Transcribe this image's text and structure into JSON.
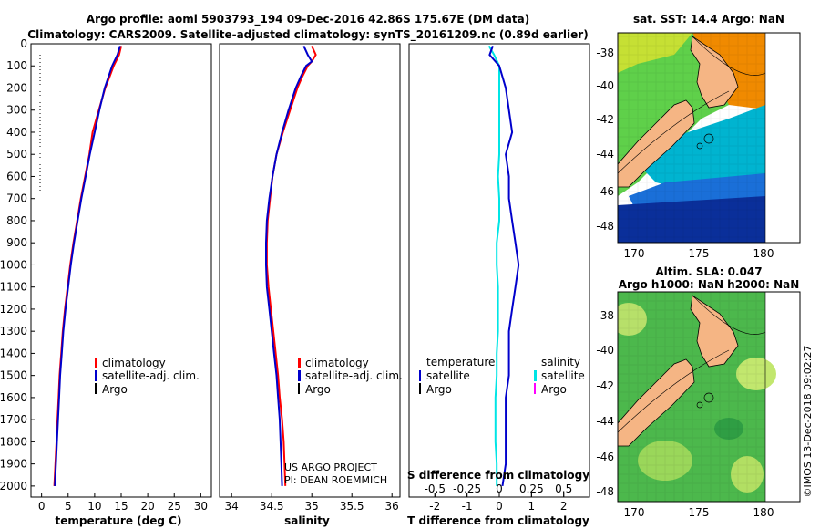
{
  "header": {
    "line1": "Argo profile: aoml 5903793_194 09-Dec-2016 42.86S 175.67E (DM data)",
    "line2": "Climatology: CARS2009. Satellite-adjusted climatology: synTS_20161209.nc (0.89d earlier)"
  },
  "colors": {
    "climatology": "#ff0000",
    "satellite": "#0000cc",
    "argo": "#000000",
    "satellite_sal": "#00e5e5",
    "argo_sal": "#ff00ff",
    "land": "#f5b584"
  },
  "chart_data": [
    {
      "type": "line",
      "id": "temperature",
      "xlabel": "temperature (deg C)",
      "ylabel": "",
      "xlim": [
        -2,
        32
      ],
      "ylim": [
        0,
        2050
      ],
      "y_inverted": true,
      "xticks": [
        0,
        5,
        10,
        15,
        20,
        25,
        30
      ],
      "yticks": [
        0,
        100,
        200,
        300,
        400,
        500,
        600,
        700,
        800,
        900,
        1000,
        1100,
        1200,
        1300,
        1400,
        1500,
        1600,
        1700,
        1800,
        1900,
        2000
      ],
      "depth": [
        10,
        50,
        100,
        150,
        200,
        300,
        400,
        500,
        600,
        700,
        800,
        900,
        1000,
        1100,
        1200,
        1300,
        1400,
        1500,
        1600,
        1700,
        1800,
        1900,
        2000
      ],
      "series": [
        {
          "name": "climatology",
          "values": [
            15.0,
            14.6,
            13.6,
            12.8,
            12.0,
            10.8,
            9.6,
            9.0,
            8.2,
            7.4,
            6.7,
            6.0,
            5.4,
            4.9,
            4.4,
            4.0,
            3.7,
            3.4,
            3.2,
            3.0,
            2.8,
            2.6,
            2.4
          ]
        },
        {
          "name": "satellite-adj. clim.",
          "values": [
            14.8,
            14.3,
            13.3,
            12.6,
            11.9,
            10.9,
            10.0,
            9.1,
            8.3,
            7.5,
            6.8,
            6.1,
            5.5,
            5.0,
            4.5,
            4.1,
            3.8,
            3.5,
            3.3,
            3.1,
            2.9,
            2.7,
            2.5
          ]
        },
        {
          "name": "Argo",
          "values": []
        }
      ],
      "legend": [
        "climatology",
        "satellite-adj. clim.",
        "Argo"
      ]
    },
    {
      "type": "line",
      "id": "salinity",
      "xlabel": "salinity",
      "ylabel": "",
      "xlim": [
        33.85,
        36.1
      ],
      "ylim": [
        0,
        2050
      ],
      "y_inverted": true,
      "xticks": [
        34,
        34.5,
        35,
        35.5,
        36
      ],
      "xticklabels": [
        "34",
        "34.5",
        "35",
        "35.5",
        "36"
      ],
      "depth": [
        10,
        50,
        80,
        100,
        150,
        200,
        300,
        400,
        500,
        600,
        700,
        800,
        900,
        1000,
        1100,
        1200,
        1300,
        1400,
        1500,
        1600,
        1700,
        1800,
        1900,
        2000
      ],
      "series": [
        {
          "name": "climatology",
          "values": [
            35.0,
            35.05,
            35.0,
            34.95,
            34.88,
            34.82,
            34.73,
            34.64,
            34.56,
            34.51,
            34.48,
            34.45,
            34.44,
            34.44,
            34.46,
            34.49,
            34.52,
            34.55,
            34.58,
            34.6,
            34.63,
            34.65,
            34.66,
            34.67
          ]
        },
        {
          "name": "satellite-adj. clim.",
          "values": [
            34.9,
            34.95,
            35.0,
            34.93,
            34.86,
            34.8,
            34.71,
            34.63,
            34.56,
            34.51,
            34.47,
            34.44,
            34.43,
            34.43,
            34.44,
            34.47,
            34.5,
            34.53,
            34.56,
            34.58,
            34.6,
            34.61,
            34.62,
            34.63
          ]
        },
        {
          "name": "Argo",
          "values": []
        }
      ],
      "legend": [
        "climatology",
        "satellite-adj. clim.",
        "Argo"
      ],
      "annotation": [
        "US ARGO PROJECT",
        "PI: DEAN ROEMMICH"
      ]
    },
    {
      "type": "line",
      "id": "difference",
      "xlabel": "T difference from climatology",
      "xlabel_top": "S difference from climatology",
      "xlim": [
        -2.8,
        2.8
      ],
      "ylim": [
        0,
        2050
      ],
      "y_inverted": true,
      "xticks": [
        -2,
        -1,
        0,
        1,
        2
      ],
      "xticks_top": [
        -0.5,
        -0.25,
        0,
        0.25,
        0.5
      ],
      "xticks_top_labels": [
        "-0.5",
        "-0.25",
        "0",
        "0.25",
        "0.5"
      ],
      "depth": [
        10,
        50,
        100,
        200,
        300,
        400,
        500,
        600,
        700,
        800,
        900,
        1000,
        1100,
        1200,
        1300,
        1400,
        1500,
        1600,
        1700,
        1800,
        1900,
        2000
      ],
      "series": [
        {
          "name": "temperature satellite",
          "values": [
            -0.2,
            -0.3,
            0.0,
            0.2,
            0.3,
            0.4,
            0.2,
            0.3,
            0.3,
            0.4,
            0.5,
            0.6,
            0.5,
            0.4,
            0.3,
            0.3,
            0.3,
            0.2,
            0.2,
            0.2,
            0.2,
            0.1
          ]
        },
        {
          "name": "salinity satellite",
          "values": [
            -0.08,
            -0.04,
            0.0,
            0.0,
            0.0,
            0.0,
            0.0,
            -0.01,
            0.0,
            0.0,
            -0.02,
            -0.02,
            -0.01,
            -0.01,
            -0.01,
            -0.02,
            -0.02,
            -0.03,
            -0.03,
            -0.03,
            -0.02,
            -0.02
          ]
        }
      ],
      "legend_left_title": "temperature",
      "legend_left": [
        "satellite",
        "Argo"
      ],
      "legend_right_title": "salinity",
      "legend_right": [
        "satellite",
        "Argo"
      ]
    }
  ],
  "maps": {
    "top": {
      "title": "sat. SST: 14.4 Argo: NaN",
      "lat_ticks": [
        "-38",
        "-40",
        "-42",
        "-44",
        "-46",
        "-48"
      ],
      "lon_ticks": [
        "170",
        "175",
        "180"
      ]
    },
    "bottom": {
      "title1": "Altim. SLA: 0.047",
      "title2": "Argo h1000: NaN h2000: NaN",
      "lat_ticks": [
        "-38",
        "-40",
        "-42",
        "-44",
        "-46",
        "-48"
      ],
      "lon_ticks": [
        "170",
        "175",
        "180"
      ]
    }
  },
  "footer": {
    "credit": "©IMOS 13-Dec-2018 09:02:27"
  }
}
